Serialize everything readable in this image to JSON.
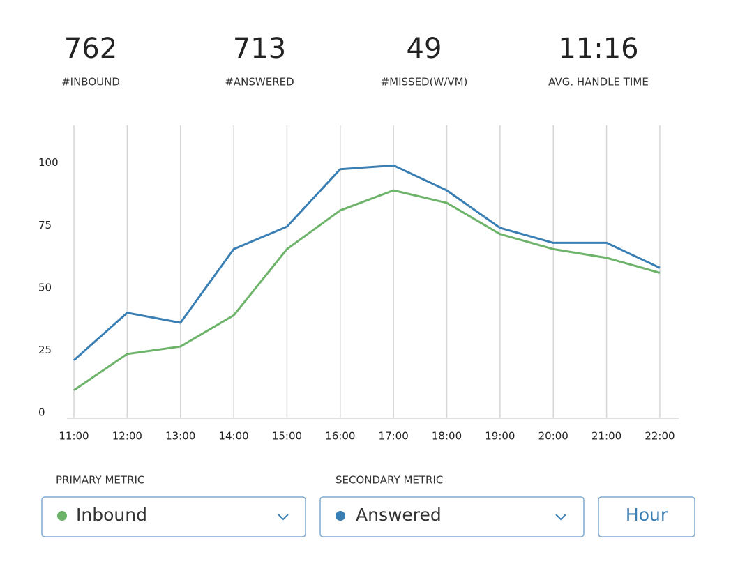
{
  "stats": [
    {
      "value": "762",
      "label": "#INBOUND"
    },
    {
      "value": "713",
      "label": "#ANSWERED"
    },
    {
      "value": "49",
      "label": "#MISSED(W/VM)"
    },
    {
      "value": "11:16",
      "label": "AVG. HANDLE TIME"
    }
  ],
  "chart_data": {
    "type": "line",
    "categories": [
      "11:00",
      "12:00",
      "13:00",
      "14:00",
      "15:00",
      "16:00",
      "17:00",
      "18:00",
      "19:00",
      "20:00",
      "21:00",
      "22:00"
    ],
    "series": [
      {
        "name": "Answered",
        "color": "#3a7fb4",
        "values": [
          21,
          40,
          36,
          65.5,
          74.5,
          97.5,
          99,
          89,
          74,
          68,
          68,
          58
        ]
      },
      {
        "name": "Inbound",
        "color": "#6db46a",
        "values": [
          9,
          23.5,
          26.5,
          39,
          65.5,
          81,
          89,
          84,
          71.5,
          65.5,
          62,
          56
        ]
      }
    ],
    "ylim": [
      0,
      115
    ],
    "yticks": [
      0,
      25,
      50,
      75,
      100
    ],
    "grid": true
  },
  "controls": {
    "primary": {
      "label": "PRIMARY METRIC",
      "selected": "Inbound"
    },
    "secondary": {
      "label": "SECONDARY METRIC",
      "selected": "Answered"
    },
    "button": "Hour"
  }
}
